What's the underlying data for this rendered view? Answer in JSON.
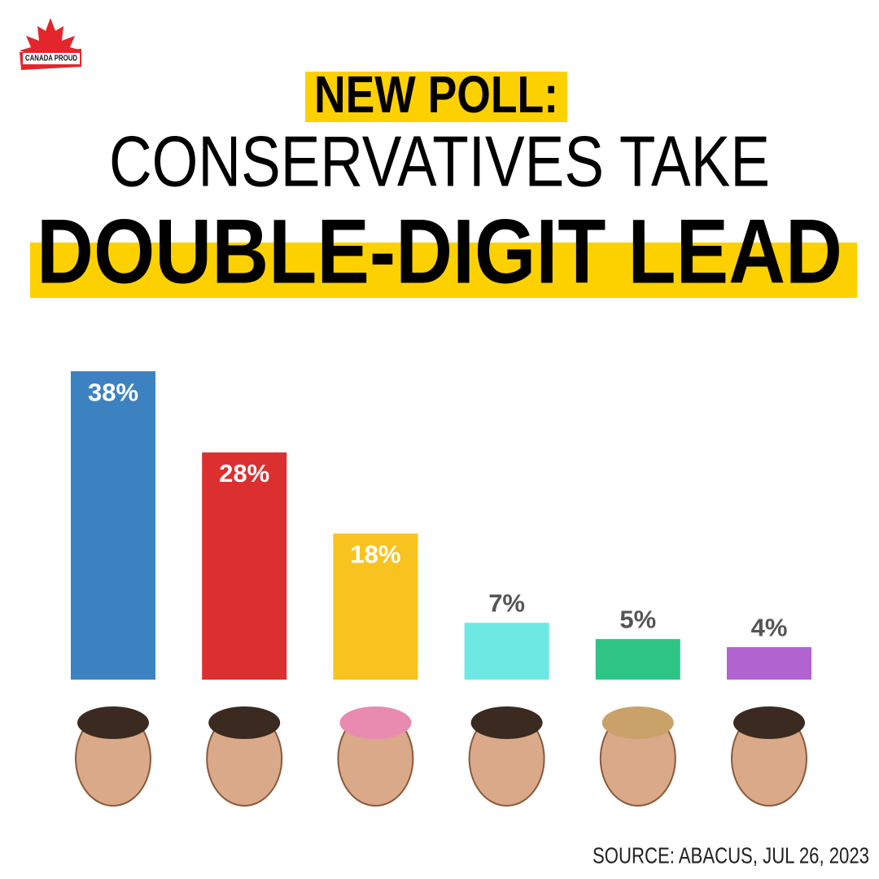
{
  "chart_data": {
    "type": "bar",
    "logo": "CANADA PROUD",
    "title": "NEW POLL:",
    "subtitle": "CONSERVATIVES TAKE",
    "headline": "DOUBLE-DIGIT LEAD",
    "source": "SOURCE: ABACUS, JUL 26, 2023",
    "categories": [
      null,
      null,
      null,
      null,
      null,
      null
    ],
    "values": [
      38,
      28,
      18,
      7,
      5,
      4
    ],
    "value_labels": [
      "38%",
      "28%",
      "18%",
      "7%",
      "5%",
      "4%"
    ],
    "colors": [
      "#3d82c0",
      "#dc2f2f",
      "#f8c31e",
      "#6de8e3",
      "#2ec485",
      "#b163cf"
    ]
  }
}
